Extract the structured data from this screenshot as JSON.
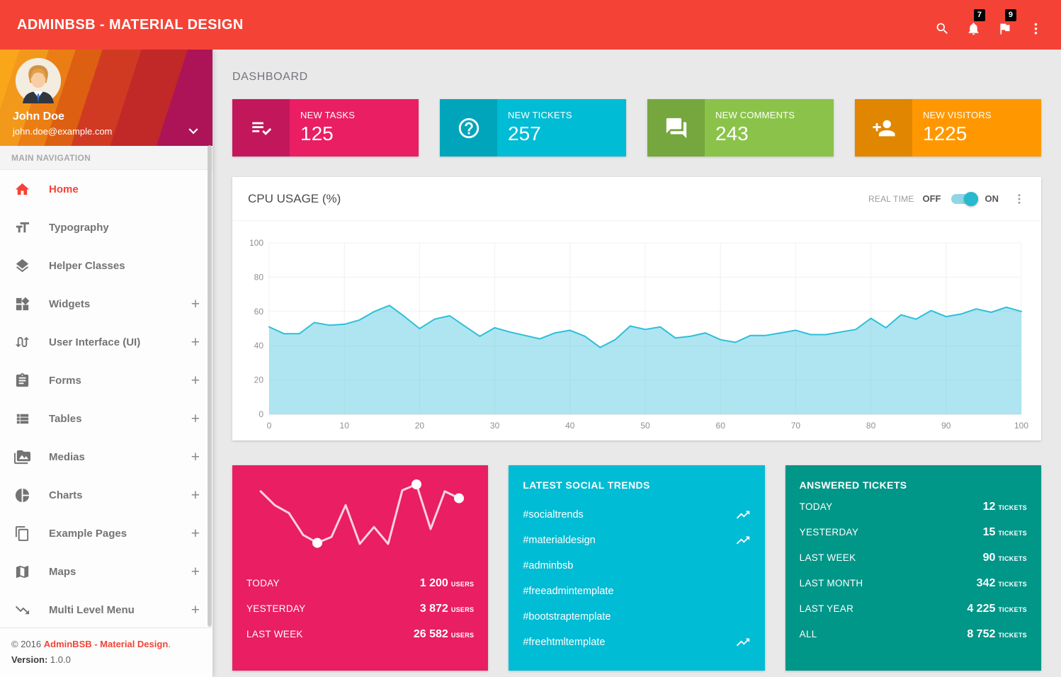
{
  "header": {
    "title": "ADMINBSB - MATERIAL DESIGN",
    "icons": [
      "search-icon",
      "bell-icon",
      "flag-icon",
      "kebab-icon"
    ],
    "notifications_badge": "7",
    "flags_badge": "9",
    "color": "#f44336"
  },
  "sidebar": {
    "user": {
      "name": "John Doe",
      "email": "john.doe@example.com"
    },
    "nav_label": "MAIN NAVIGATION",
    "expand_glyph": "+",
    "items": [
      {
        "label": "Home",
        "icon": "home-icon",
        "active": true,
        "expandable": false
      },
      {
        "label": "Typography",
        "icon": "typography-icon",
        "active": false,
        "expandable": false
      },
      {
        "label": "Helper Classes",
        "icon": "layers-icon",
        "active": false,
        "expandable": false
      },
      {
        "label": "Widgets",
        "icon": "widgets-icon",
        "active": false,
        "expandable": true
      },
      {
        "label": "User Interface (UI)",
        "icon": "swap-calls-icon",
        "active": false,
        "expandable": true
      },
      {
        "label": "Forms",
        "icon": "clipboard-icon",
        "active": false,
        "expandable": true
      },
      {
        "label": "Tables",
        "icon": "table-list-icon",
        "active": false,
        "expandable": true
      },
      {
        "label": "Medias",
        "icon": "media-icon",
        "active": false,
        "expandable": true
      },
      {
        "label": "Charts",
        "icon": "pie-chart-icon",
        "active": false,
        "expandable": true
      },
      {
        "label": "Example Pages",
        "icon": "copy-icon",
        "active": false,
        "expandable": true
      },
      {
        "label": "Maps",
        "icon": "map-icon",
        "active": false,
        "expandable": true
      },
      {
        "label": "Multi Level Menu",
        "icon": "trending-down-icon",
        "active": false,
        "expandable": true
      }
    ],
    "footer": {
      "copyright_prefix": "© 2016 ",
      "brand_link": "AdminBSB - Material Design",
      "copyright_suffix": ".",
      "version_label": "Version: ",
      "version_value": "1.0.0"
    }
  },
  "main": {
    "page_title": "DASHBOARD",
    "info_boxes": [
      {
        "label": "NEW TASKS",
        "value": "125",
        "bg": "#e91e63",
        "icon_bg": "#c2185b",
        "icon": "playlist-check-icon"
      },
      {
        "label": "NEW TICKETS",
        "value": "257",
        "bg": "#00bcd4",
        "icon_bg": "#00a5bb",
        "icon": "help-icon"
      },
      {
        "label": "NEW COMMENTS",
        "value": "243",
        "bg": "#8bc34a",
        "icon_bg": "#75a73e",
        "icon": "forum-icon"
      },
      {
        "label": "NEW VISITORS",
        "value": "1225",
        "bg": "#ff9800",
        "icon_bg": "#e08600",
        "icon": "person-add-icon"
      }
    ],
    "cpu_card": {
      "title": "CPU USAGE (%)",
      "realtime_label": "REAL TIME",
      "off_label": "OFF",
      "on_label": "ON",
      "toggle_state": "on"
    },
    "visitors_card": {
      "color": "#e91e63",
      "rows": [
        {
          "label": "TODAY",
          "value": "1 200",
          "unit": "USERS"
        },
        {
          "label": "YESTERDAY",
          "value": "3 872",
          "unit": "USERS"
        },
        {
          "label": "LAST WEEK",
          "value": "26 582",
          "unit": "USERS"
        }
      ]
    },
    "trends_card": {
      "color": "#00bcd4",
      "title": "LATEST SOCIAL TRENDS",
      "items": [
        {
          "tag": "#socialtrends",
          "trending": true
        },
        {
          "tag": "#materialdesign",
          "trending": true
        },
        {
          "tag": "#adminbsb",
          "trending": false
        },
        {
          "tag": "#freeadmintemplate",
          "trending": false
        },
        {
          "tag": "#bootstraptemplate",
          "trending": false
        },
        {
          "tag": "#freehtmltemplate",
          "trending": true
        }
      ]
    },
    "tickets_card": {
      "color": "#009688",
      "title": "ANSWERED TICKETS",
      "rows": [
        {
          "label": "TODAY",
          "value": "12",
          "unit": "TICKETS"
        },
        {
          "label": "YESTERDAY",
          "value": "15",
          "unit": "TICKETS"
        },
        {
          "label": "LAST WEEK",
          "value": "90",
          "unit": "TICKETS"
        },
        {
          "label": "LAST MONTH",
          "value": "342",
          "unit": "TICKETS"
        },
        {
          "label": "LAST YEAR",
          "value": "4 225",
          "unit": "TICKETS"
        },
        {
          "label": "ALL",
          "value": "8 752",
          "unit": "TICKETS"
        }
      ]
    }
  },
  "chart_data": [
    {
      "id": "cpu_usage",
      "type": "area",
      "title": "CPU USAGE (%)",
      "xlabel": "",
      "ylabel": "",
      "xlim": [
        0,
        100
      ],
      "ylim": [
        0,
        100
      ],
      "x_ticks": [
        0,
        10,
        20,
        30,
        40,
        50,
        60,
        70,
        80,
        90,
        100
      ],
      "y_ticks": [
        0,
        20,
        40,
        60,
        80,
        100
      ],
      "grid": true,
      "legend": false,
      "x_start": 0,
      "x_step": 2,
      "values": [
        51,
        47,
        47,
        53.5,
        52,
        52.5,
        55,
        60,
        63.5,
        57,
        50,
        55.5,
        57.5,
        51.5,
        45.5,
        50.5,
        48,
        46,
        44,
        47.5,
        49,
        45.5,
        39,
        43.5,
        51.5,
        49.5,
        51,
        44.5,
        45.5,
        47.5,
        43.5,
        42,
        46,
        46,
        47.5,
        49,
        46.5,
        46.5,
        48,
        49.5,
        56,
        50.5,
        58,
        55.5,
        60.5,
        57,
        58.5,
        61.5,
        59.5,
        62.5,
        60
      ],
      "line_color": "#2dbfd9",
      "fill_color": "#4ec6dd",
      "fill_opacity": 0.45,
      "grid_color": "#f0f0f0",
      "tick_color": "#8f8f8f"
    },
    {
      "id": "visitors_sparkline",
      "type": "line",
      "title": "",
      "values": [
        93,
        79,
        71,
        49,
        41,
        47,
        79,
        40,
        57,
        40,
        94,
        100,
        55,
        93,
        86
      ],
      "marker_indices": [
        4,
        11,
        14
      ],
      "line_color": "#ffffff",
      "line_opacity": 0.8,
      "marker_color": "#ffffff"
    }
  ]
}
